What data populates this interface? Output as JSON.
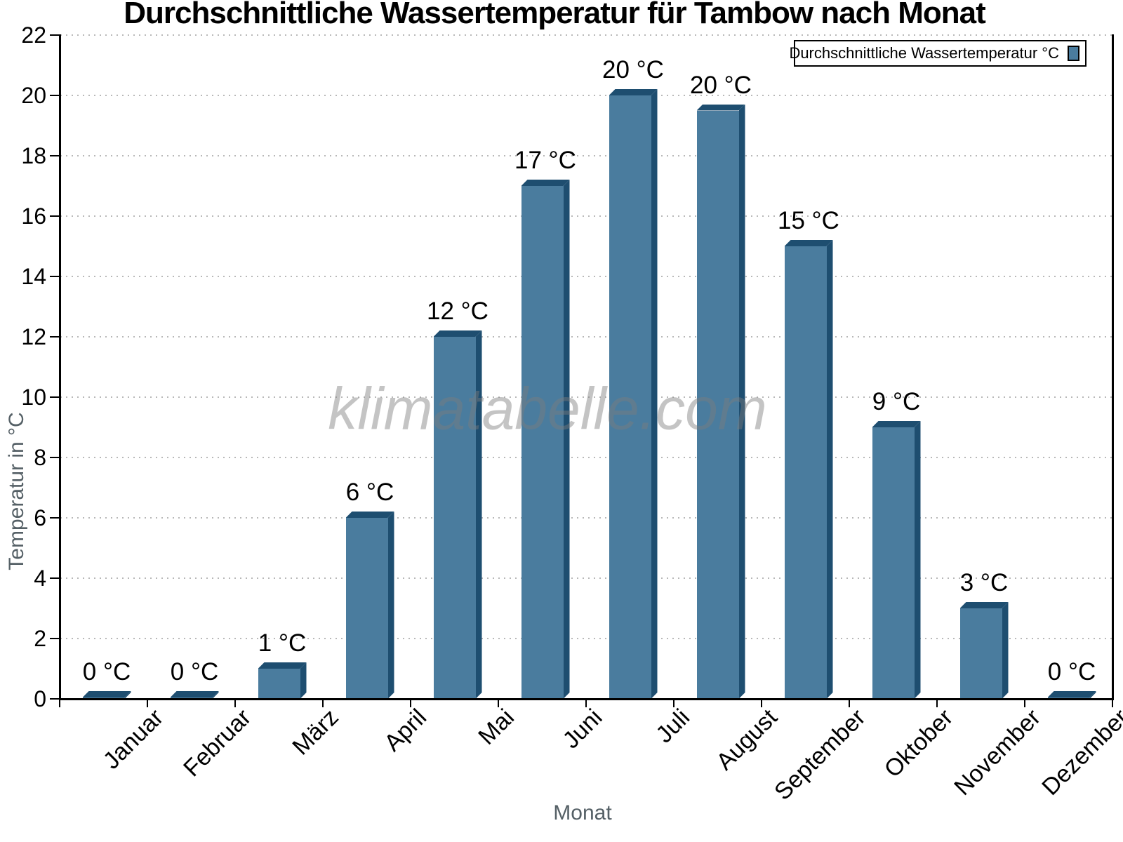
{
  "figure": {
    "title": "Durchschnittliche Wassertemperatur für Tambow nach Monat",
    "watermark": "klimatabelle.com"
  },
  "legend": {
    "label": "Durchschnittliche Wassertemperatur °C"
  },
  "chart_data": {
    "type": "bar",
    "title": "Durchschnittliche Wassertemperatur für Tambow nach Monat",
    "xlabel": "Monat",
    "ylabel": "Temperatur in °C",
    "categories": [
      "Januar",
      "Februar",
      "März",
      "April",
      "Mai",
      "Juni",
      "Juli",
      "August",
      "September",
      "Oktober",
      "November",
      "Dezember"
    ],
    "series": [
      {
        "name": "Durchschnittliche Wassertemperatur °C",
        "values": [
          0,
          0,
          1,
          6,
          12,
          17,
          20,
          20,
          15,
          9,
          3,
          0
        ],
        "bar_heights_rendered": [
          0,
          0,
          1,
          6,
          12,
          17,
          20,
          19.5,
          15,
          9,
          3,
          0
        ],
        "value_labels": [
          "0 °C",
          "0 °C",
          "1 °C",
          "6 °C",
          "12 °C",
          "17 °C",
          "20 °C",
          "20 °C",
          "15 °C",
          "9 °C",
          "3 °C",
          "0 °C"
        ]
      }
    ],
    "ylim": [
      0,
      22
    ],
    "ytick_step": 2,
    "ytick_labels": [
      "0",
      "2",
      "4",
      "6",
      "8",
      "10",
      "12",
      "14",
      "16",
      "18",
      "20",
      "22"
    ],
    "grid": "horizontal dotted",
    "legend_position": "top-right",
    "bar_style": "3d-extruded",
    "colors": {
      "bar_face": "#4A7C9E",
      "bar_shadow": "#1E4E70",
      "grid_line": "#B8B8B8",
      "axis": "#000000",
      "axis_title_text": "#556066",
      "watermark_text": "#9E9E9E"
    }
  }
}
